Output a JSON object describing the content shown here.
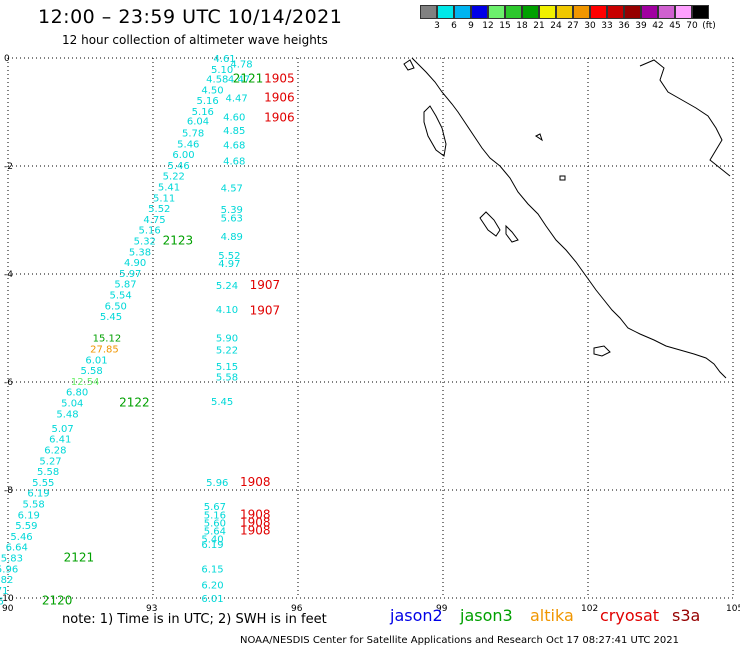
{
  "header": {
    "title": "12:00 – 23:59 UTC 10/14/2021",
    "subtitle": "12 hour collection of altimeter wave heights"
  },
  "colorbar": {
    "colors": [
      "#808080",
      "#00e8e8",
      "#00b4f0",
      "#0000e6",
      "#6cf06c",
      "#2cc82c",
      "#00a000",
      "#f0f000",
      "#f0c800",
      "#f09600",
      "#ff0000",
      "#c80000",
      "#960000",
      "#a000a0",
      "#d060d0",
      "#ffa0ff",
      "#000000"
    ],
    "labels": [
      "3",
      "6",
      "9",
      "12",
      "15",
      "18",
      "21",
      "24",
      "27",
      "30",
      "33",
      "36",
      "39",
      "42",
      "45",
      "70",
      "(ft)"
    ]
  },
  "axes": {
    "x_ticks": [
      "90",
      "93",
      "96",
      "99",
      "102",
      "105"
    ],
    "y_ticks": [
      "0",
      "-2",
      "-4",
      "-6",
      "-8",
      "-10"
    ]
  },
  "swh_labels": [
    {
      "t": "4.61",
      "c": "#00d8d8",
      "lon": 94.25,
      "lat": 0.0
    },
    {
      "t": "4.78",
      "c": "#00d8d8",
      "lon": 94.6,
      "lat": -0.1
    },
    {
      "t": "5.10",
      "c": "#00d8d8",
      "lon": 94.2,
      "lat": -0.2
    },
    {
      "t": "4.58",
      "c": "#00d8d8",
      "lon": 94.1,
      "lat": -0.38
    },
    {
      "t": "4.47",
      "c": "#00d8d8",
      "lon": 94.55,
      "lat": -0.38
    },
    {
      "t": "4.50",
      "c": "#00d8d8",
      "lon": 94.0,
      "lat": -0.58
    },
    {
      "t": "5.16",
      "c": "#00d8d8",
      "lon": 93.9,
      "lat": -0.78
    },
    {
      "t": "4.47",
      "c": "#00d8d8",
      "lon": 94.5,
      "lat": -0.73
    },
    {
      "t": "5.16",
      "c": "#00d8d8",
      "lon": 93.8,
      "lat": -0.98
    },
    {
      "t": "6.04",
      "c": "#00d8d8",
      "lon": 93.7,
      "lat": -1.16
    },
    {
      "t": "4.60",
      "c": "#00d8d8",
      "lon": 94.45,
      "lat": -1.08
    },
    {
      "t": "4.85",
      "c": "#00d8d8",
      "lon": 94.45,
      "lat": -1.33
    },
    {
      "t": "5.78",
      "c": "#00d8d8",
      "lon": 93.6,
      "lat": -1.38
    },
    {
      "t": "5.46",
      "c": "#00d8d8",
      "lon": 93.5,
      "lat": -1.58
    },
    {
      "t": "4.68",
      "c": "#00d8d8",
      "lon": 94.45,
      "lat": -1.6
    },
    {
      "t": "6.00",
      "c": "#00d8d8",
      "lon": 93.4,
      "lat": -1.78
    },
    {
      "t": "5.46",
      "c": "#00d8d8",
      "lon": 93.3,
      "lat": -1.98
    },
    {
      "t": "4.68",
      "c": "#00d8d8",
      "lon": 94.45,
      "lat": -1.9
    },
    {
      "t": "5.22",
      "c": "#00d8d8",
      "lon": 93.2,
      "lat": -2.18
    },
    {
      "t": "5.41",
      "c": "#00d8d8",
      "lon": 93.1,
      "lat": -2.38
    },
    {
      "t": "4.57",
      "c": "#00d8d8",
      "lon": 94.4,
      "lat": -2.4
    },
    {
      "t": "5.11",
      "c": "#00d8d8",
      "lon": 93.0,
      "lat": -2.58
    },
    {
      "t": "5.39",
      "c": "#00d8d8",
      "lon": 94.4,
      "lat": -2.8
    },
    {
      "t": "5.52",
      "c": "#00d8d8",
      "lon": 92.9,
      "lat": -2.78
    },
    {
      "t": "5.63",
      "c": "#00d8d8",
      "lon": 94.4,
      "lat": -2.95
    },
    {
      "t": "4.75",
      "c": "#00d8d8",
      "lon": 92.8,
      "lat": -2.98
    },
    {
      "t": "5.16",
      "c": "#00d8d8",
      "lon": 92.7,
      "lat": -3.18
    },
    {
      "t": "4.89",
      "c": "#00d8d8",
      "lon": 94.4,
      "lat": -3.3
    },
    {
      "t": "5.32",
      "c": "#00d8d8",
      "lon": 92.6,
      "lat": -3.38
    },
    {
      "t": "5.38",
      "c": "#00d8d8",
      "lon": 92.5,
      "lat": -3.58
    },
    {
      "t": "5.52",
      "c": "#00d8d8",
      "lon": 94.35,
      "lat": -3.65
    },
    {
      "t": "4.90",
      "c": "#00d8d8",
      "lon": 92.4,
      "lat": -3.78
    },
    {
      "t": "4.97",
      "c": "#00d8d8",
      "lon": 94.35,
      "lat": -3.8
    },
    {
      "t": "5.97",
      "c": "#00d8d8",
      "lon": 92.3,
      "lat": -3.98
    },
    {
      "t": "5.87",
      "c": "#00d8d8",
      "lon": 92.2,
      "lat": -4.18
    },
    {
      "t": "5.24",
      "c": "#00d8d8",
      "lon": 94.3,
      "lat": -4.2
    },
    {
      "t": "5.54",
      "c": "#00d8d8",
      "lon": 92.1,
      "lat": -4.38
    },
    {
      "t": "6.50",
      "c": "#00d8d8",
      "lon": 92.0,
      "lat": -4.58
    },
    {
      "t": "4.10",
      "c": "#00d8d8",
      "lon": 94.3,
      "lat": -4.65
    },
    {
      "t": "5.45",
      "c": "#00d8d8",
      "lon": 91.9,
      "lat": -4.78
    },
    {
      "t": "15.12",
      "c": "#00a000",
      "lon": 91.75,
      "lat": -5.18
    },
    {
      "t": "5.90",
      "c": "#00d8d8",
      "lon": 94.3,
      "lat": -5.18
    },
    {
      "t": "27.85",
      "c": "#f09600",
      "lon": 91.7,
      "lat": -5.38
    },
    {
      "t": "5.22",
      "c": "#00d8d8",
      "lon": 94.3,
      "lat": -5.4
    },
    {
      "t": "6.01",
      "c": "#00d8d8",
      "lon": 91.6,
      "lat": -5.58
    },
    {
      "t": "5.15",
      "c": "#00d8d8",
      "lon": 94.3,
      "lat": -5.7
    },
    {
      "t": "5.58",
      "c": "#00d8d8",
      "lon": 91.5,
      "lat": -5.78
    },
    {
      "t": "5.58",
      "c": "#00d8d8",
      "lon": 94.3,
      "lat": -5.9
    },
    {
      "t": "12.54",
      "c": "#6cf06c",
      "lon": 91.3,
      "lat": -5.98
    },
    {
      "t": "6.80",
      "c": "#00d8d8",
      "lon": 91.2,
      "lat": -6.18
    },
    {
      "t": "5.04",
      "c": "#00d8d8",
      "lon": 91.1,
      "lat": -6.38
    },
    {
      "t": "5.45",
      "c": "#00d8d8",
      "lon": 94.2,
      "lat": -6.35
    },
    {
      "t": "5.48",
      "c": "#00d8d8",
      "lon": 91.0,
      "lat": -6.58
    },
    {
      "t": "5.07",
      "c": "#00d8d8",
      "lon": 90.9,
      "lat": -6.85
    },
    {
      "t": "6.41",
      "c": "#00d8d8",
      "lon": 90.85,
      "lat": -7.05
    },
    {
      "t": "6.28",
      "c": "#00d8d8",
      "lon": 90.75,
      "lat": -7.25
    },
    {
      "t": "5.27",
      "c": "#00d8d8",
      "lon": 90.65,
      "lat": -7.45
    },
    {
      "t": "5.58",
      "c": "#00d8d8",
      "lon": 90.6,
      "lat": -7.65
    },
    {
      "t": "5.55",
      "c": "#00d8d8",
      "lon": 90.5,
      "lat": -7.85
    },
    {
      "t": "5.96",
      "c": "#00d8d8",
      "lon": 94.1,
      "lat": -7.85
    },
    {
      "t": "6.19",
      "c": "#00d8d8",
      "lon": 90.4,
      "lat": -8.05
    },
    {
      "t": "5.58",
      "c": "#00d8d8",
      "lon": 90.3,
      "lat": -8.25
    },
    {
      "t": "5.67",
      "c": "#00d8d8",
      "lon": 94.05,
      "lat": -8.3
    },
    {
      "t": "6.19",
      "c": "#00d8d8",
      "lon": 90.2,
      "lat": -8.45
    },
    {
      "t": "5.16",
      "c": "#00d8d8",
      "lon": 94.05,
      "lat": -8.45
    },
    {
      "t": "5.59",
      "c": "#00d8d8",
      "lon": 90.15,
      "lat": -8.65
    },
    {
      "t": "5.60",
      "c": "#00d8d8",
      "lon": 94.05,
      "lat": -8.6
    },
    {
      "t": "5.64",
      "c": "#00d8d8",
      "lon": 94.05,
      "lat": -8.75
    },
    {
      "t": "5.46",
      "c": "#00d8d8",
      "lon": 90.05,
      "lat": -8.85
    },
    {
      "t": "5.40",
      "c": "#00d8d8",
      "lon": 94.0,
      "lat": -8.9
    },
    {
      "t": "6.19",
      "c": "#00d8d8",
      "lon": 94.0,
      "lat": -9.0
    },
    {
      "t": "6.64",
      "c": "#00d8d8",
      "lon": 89.95,
      "lat": -9.05
    },
    {
      "t": "5.83",
      "c": "#00d8d8",
      "lon": 89.85,
      "lat": -9.25
    },
    {
      "t": "5.96",
      "c": "#00d8d8",
      "lon": 89.75,
      "lat": -9.45
    },
    {
      "t": "6.15",
      "c": "#00d8d8",
      "lon": 94.0,
      "lat": -9.45
    },
    {
      "t": "5.82",
      "c": "#00d8d8",
      "lon": 89.65,
      "lat": -9.65
    },
    {
      "t": "5.71",
      "c": "#00d8d8",
      "lon": 89.55,
      "lat": -9.85
    },
    {
      "t": "6.20",
      "c": "#00d8d8",
      "lon": 94.0,
      "lat": -9.75
    },
    {
      "t": "5.86",
      "c": "#00d8d8",
      "lon": 89.45,
      "lat": -10.05
    },
    {
      "t": "6.01",
      "c": "#00d8d8",
      "lon": 94.0,
      "lat": -10.0
    }
  ],
  "time_labels": [
    {
      "t": "2121",
      "c": "#00a000",
      "lon": 94.65,
      "lat": -0.38
    },
    {
      "t": "1905",
      "c": "#e00000",
      "lon": 95.3,
      "lat": -0.38
    },
    {
      "t": "1906",
      "c": "#e00000",
      "lon": 95.3,
      "lat": -0.73
    },
    {
      "t": "1906",
      "c": "#e00000",
      "lon": 95.3,
      "lat": -1.1
    },
    {
      "t": "2123",
      "c": "#00a000",
      "lon": 93.2,
      "lat": -3.38
    },
    {
      "t": "1907",
      "c": "#e00000",
      "lon": 95.0,
      "lat": -4.2
    },
    {
      "t": "1907",
      "c": "#e00000",
      "lon": 95.0,
      "lat": -4.68
    },
    {
      "t": "2122",
      "c": "#00a000",
      "lon": 92.3,
      "lat": -6.38
    },
    {
      "t": "1908",
      "c": "#e00000",
      "lon": 94.8,
      "lat": -7.85
    },
    {
      "t": "1908",
      "c": "#e00000",
      "lon": 94.8,
      "lat": -8.45
    },
    {
      "t": "1908",
      "c": "#e00000",
      "lon": 94.8,
      "lat": -8.6
    },
    {
      "t": "1908",
      "c": "#e00000",
      "lon": 94.8,
      "lat": -8.75
    },
    {
      "t": "2121",
      "c": "#00a000",
      "lon": 91.15,
      "lat": -9.25
    },
    {
      "t": "2120",
      "c": "#00a000",
      "lon": 90.7,
      "lat": -10.05
    }
  ],
  "note": "note:  1) Time is in UTC;  2) SWH is in feet",
  "legend": [
    {
      "name": "jason2",
      "color": "#0000e6"
    },
    {
      "name": "jason3",
      "color": "#00a000"
    },
    {
      "name": "altika",
      "color": "#f09600"
    },
    {
      "name": "cryosat",
      "color": "#e00000"
    },
    {
      "name": "s3a",
      "color": "#960000"
    }
  ],
  "footer": "NOAA/NESDIS Center for Satellite Applications and Research    Oct 17 08:27:41 UTC 2021"
}
